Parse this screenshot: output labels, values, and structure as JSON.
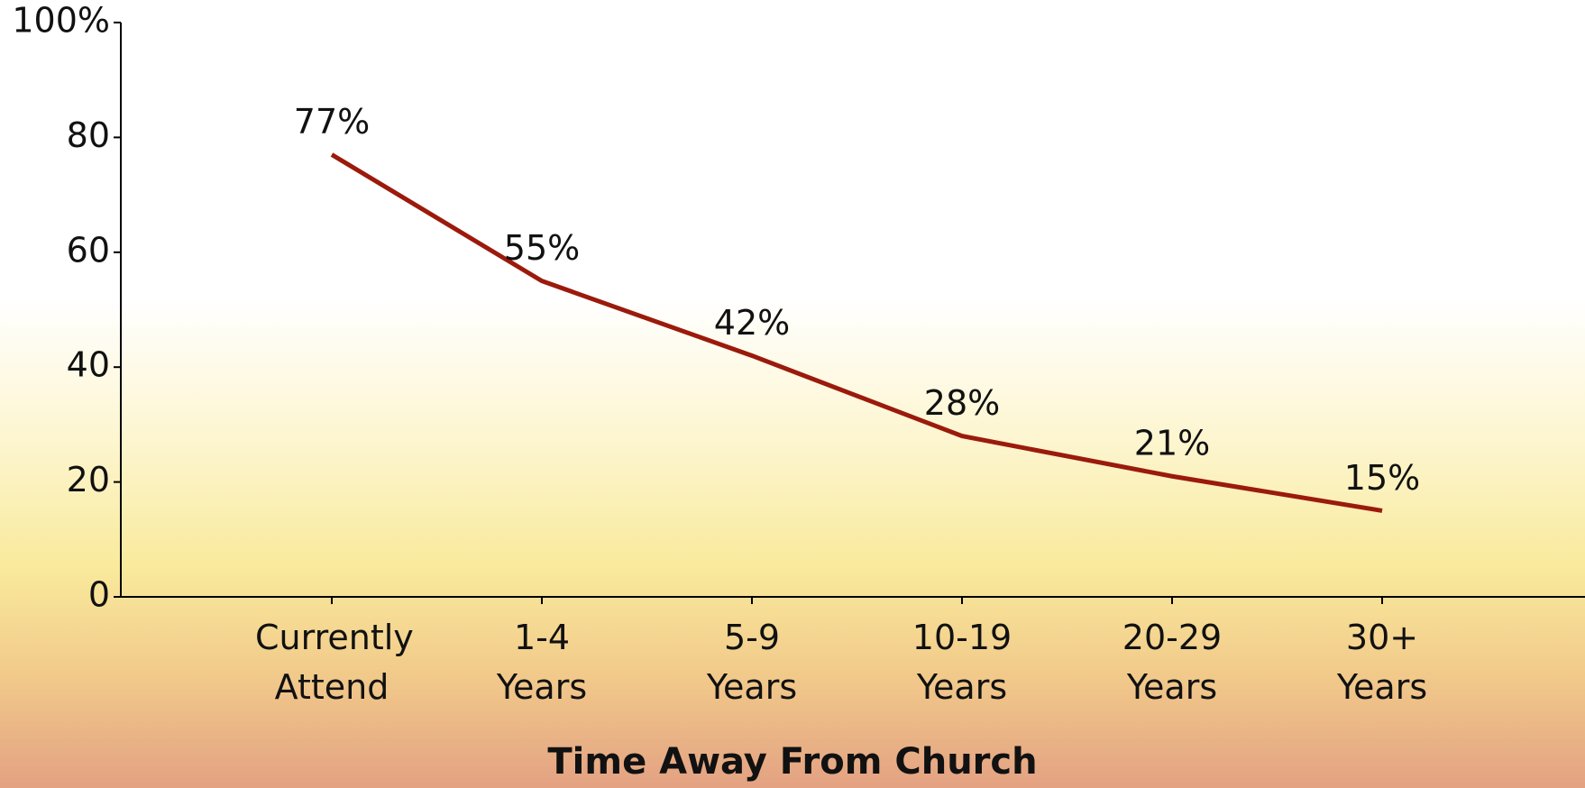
{
  "chart_data": {
    "type": "line",
    "categories": [
      "Currently Attend",
      "1-4 Years",
      "5-9 Years",
      "10-19 Years",
      "20-29 Years",
      "30+ Years"
    ],
    "series": [
      {
        "color": "#9b1a0c",
        "values": [
          77,
          55,
          42,
          28,
          21,
          15
        ],
        "value_labels": [
          "77%",
          "55%",
          "42%",
          "28%",
          "21%",
          "15%"
        ]
      }
    ],
    "x_label": "Time Away From Church",
    "ylim": [
      0,
      100
    ],
    "yticks": [
      0,
      20,
      40,
      60,
      80,
      {
        "value": 100,
        "label": "100%"
      }
    ],
    "grid": false
  }
}
